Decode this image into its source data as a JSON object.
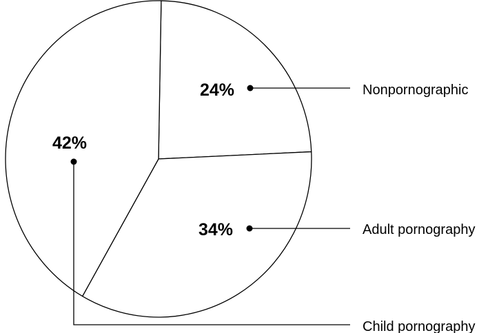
{
  "chart_data": {
    "type": "pie",
    "slices": [
      {
        "label": "Nonpornographic",
        "value": 24,
        "value_label": "24%"
      },
      {
        "label": "Adult pornography",
        "value": 34,
        "value_label": "34%"
      },
      {
        "label": "Child pornography",
        "value": 42,
        "value_label": "42%"
      }
    ],
    "colors": {
      "fill": "#ffffff",
      "stroke": "#000000"
    },
    "legend": "callout-lines-right"
  }
}
